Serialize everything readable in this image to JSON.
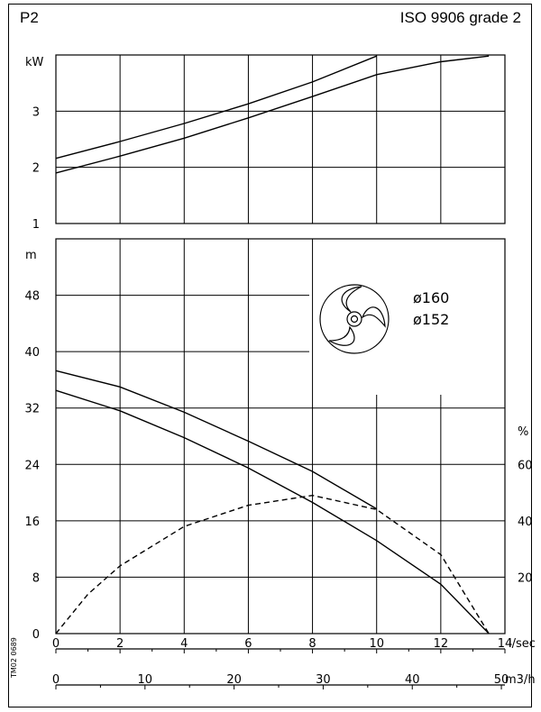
{
  "header": {
    "left_label": "P2",
    "right_label": "ISO 9906 grade 2"
  },
  "impeller": {
    "labels": [
      "ø160",
      "ø152"
    ]
  },
  "drawing_code": "TM02 0689",
  "chart_data": [
    {
      "type": "line",
      "title": "",
      "ylabel": "kW",
      "xlabel": "l/sec",
      "xlim": [
        0,
        14
      ],
      "ylim": [
        1,
        4
      ],
      "y_ticks": [
        1,
        2,
        3
      ],
      "x_ticks": [
        0,
        2,
        4,
        6,
        8,
        10,
        12,
        14
      ],
      "grid": true,
      "series": [
        {
          "name": "ø160",
          "style": "solid",
          "x": [
            0,
            2,
            4,
            6,
            8,
            10
          ],
          "y": [
            2.16,
            2.46,
            2.78,
            3.13,
            3.52,
            3.98
          ]
        },
        {
          "name": "ø152",
          "style": "solid",
          "x": [
            0,
            2,
            4,
            6,
            8,
            10,
            12,
            13.5
          ],
          "y": [
            1.9,
            2.2,
            2.52,
            2.88,
            3.26,
            3.65,
            3.88,
            3.98
          ]
        }
      ]
    },
    {
      "type": "line",
      "title": "",
      "ylabel": "m",
      "xlabel": "l/sec",
      "xlim": [
        0,
        14
      ],
      "ylim": [
        0,
        56
      ],
      "y_ticks": [
        0,
        8,
        16,
        24,
        32,
        40,
        48
      ],
      "x_ticks": [
        0,
        2,
        4,
        6,
        8,
        10,
        12,
        14
      ],
      "grid": true,
      "series": [
        {
          "name": "ø160",
          "style": "solid",
          "x": [
            0,
            2,
            4,
            6,
            8,
            10
          ],
          "y": [
            37.3,
            35,
            31.4,
            27.3,
            23,
            17.7
          ]
        },
        {
          "name": "ø152",
          "style": "solid",
          "x": [
            0,
            2,
            4,
            6,
            8,
            10,
            12,
            13.5
          ],
          "y": [
            34.5,
            31.6,
            27.8,
            23.5,
            18.6,
            13.2,
            7,
            0
          ]
        }
      ],
      "secondary_axis": {
        "ylabel": "%",
        "ticks": [
          20,
          40,
          60
        ],
        "series": [
          {
            "name": "",
            "style": "dashed",
            "x": [
              0,
              1,
              2,
              4,
              6,
              8,
              10,
              12,
              13.5
            ],
            "y": [
              0,
              14,
              24,
              38,
              45.5,
              49,
              44,
              28,
              0
            ]
          }
        ]
      },
      "secondary_x_axis": {
        "xlabel": "m3/h",
        "ticks": [
          0,
          10,
          20,
          30,
          40,
          50
        ]
      }
    }
  ]
}
